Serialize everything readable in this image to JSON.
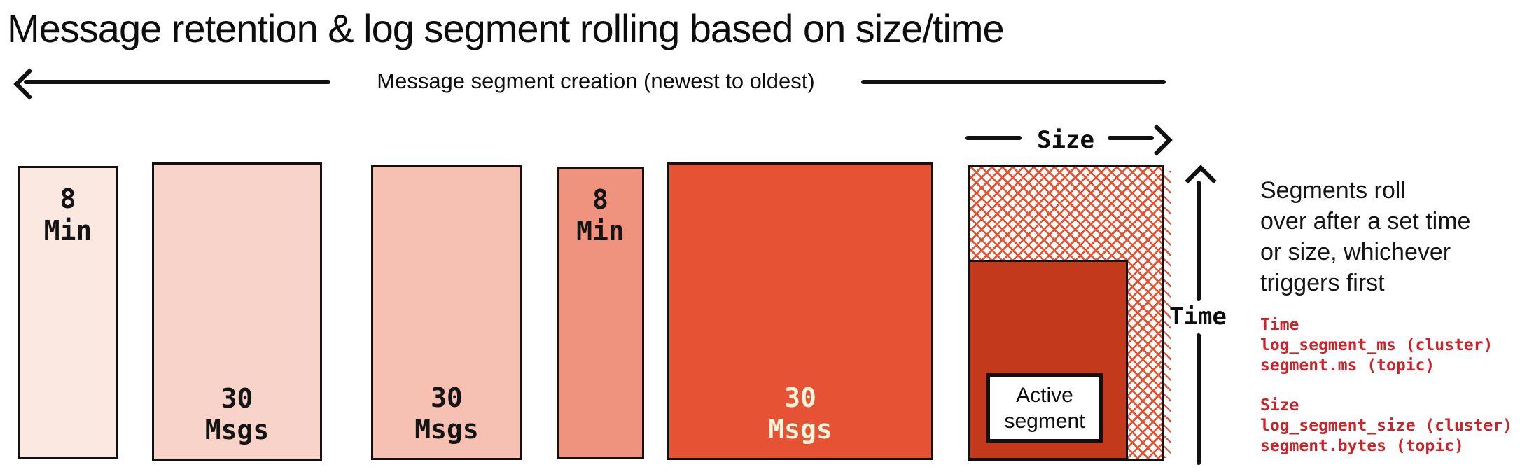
{
  "title": "Message retention & log segment rolling based on size/time",
  "creation_arrow": {
    "label": "Message segment creation (newest to oldest)"
  },
  "segments": [
    {
      "line1": "8",
      "line2": "Min",
      "fill": "#fbe9e1",
      "text_color": "#141414"
    },
    {
      "line1": "30",
      "line2": "Msgs",
      "fill": "#f8d3c9",
      "text_color": "#141414"
    },
    {
      "line1": "30",
      "line2": "Msgs",
      "fill": "#f6c1b2",
      "text_color": "#141414"
    },
    {
      "line1": "8",
      "line2": "Min",
      "fill": "#f0937e",
      "text_color": "#141414"
    },
    {
      "line1": "30",
      "line2": "Msgs",
      "fill": "#e65334",
      "text_color": "#fbf3da"
    }
  ],
  "active_segment": {
    "line1": "Active",
    "line2": "segment",
    "container_fill": "#c23a1b",
    "hatch_color": "#e8502f"
  },
  "axes": {
    "size_label": "Size",
    "time_label": "Time"
  },
  "note": {
    "lines": [
      "Segments roll",
      "over after a set time",
      "or size, whichever",
      "triggers first"
    ]
  },
  "config": {
    "text_color": "#cc2229",
    "time_heading": "Time",
    "time_lines": [
      "log_segment_ms (cluster)",
      "segment.ms (topic)"
    ],
    "size_heading": "Size",
    "size_lines": [
      "log_segment_size (cluster)",
      "segment.bytes (topic)"
    ]
  }
}
